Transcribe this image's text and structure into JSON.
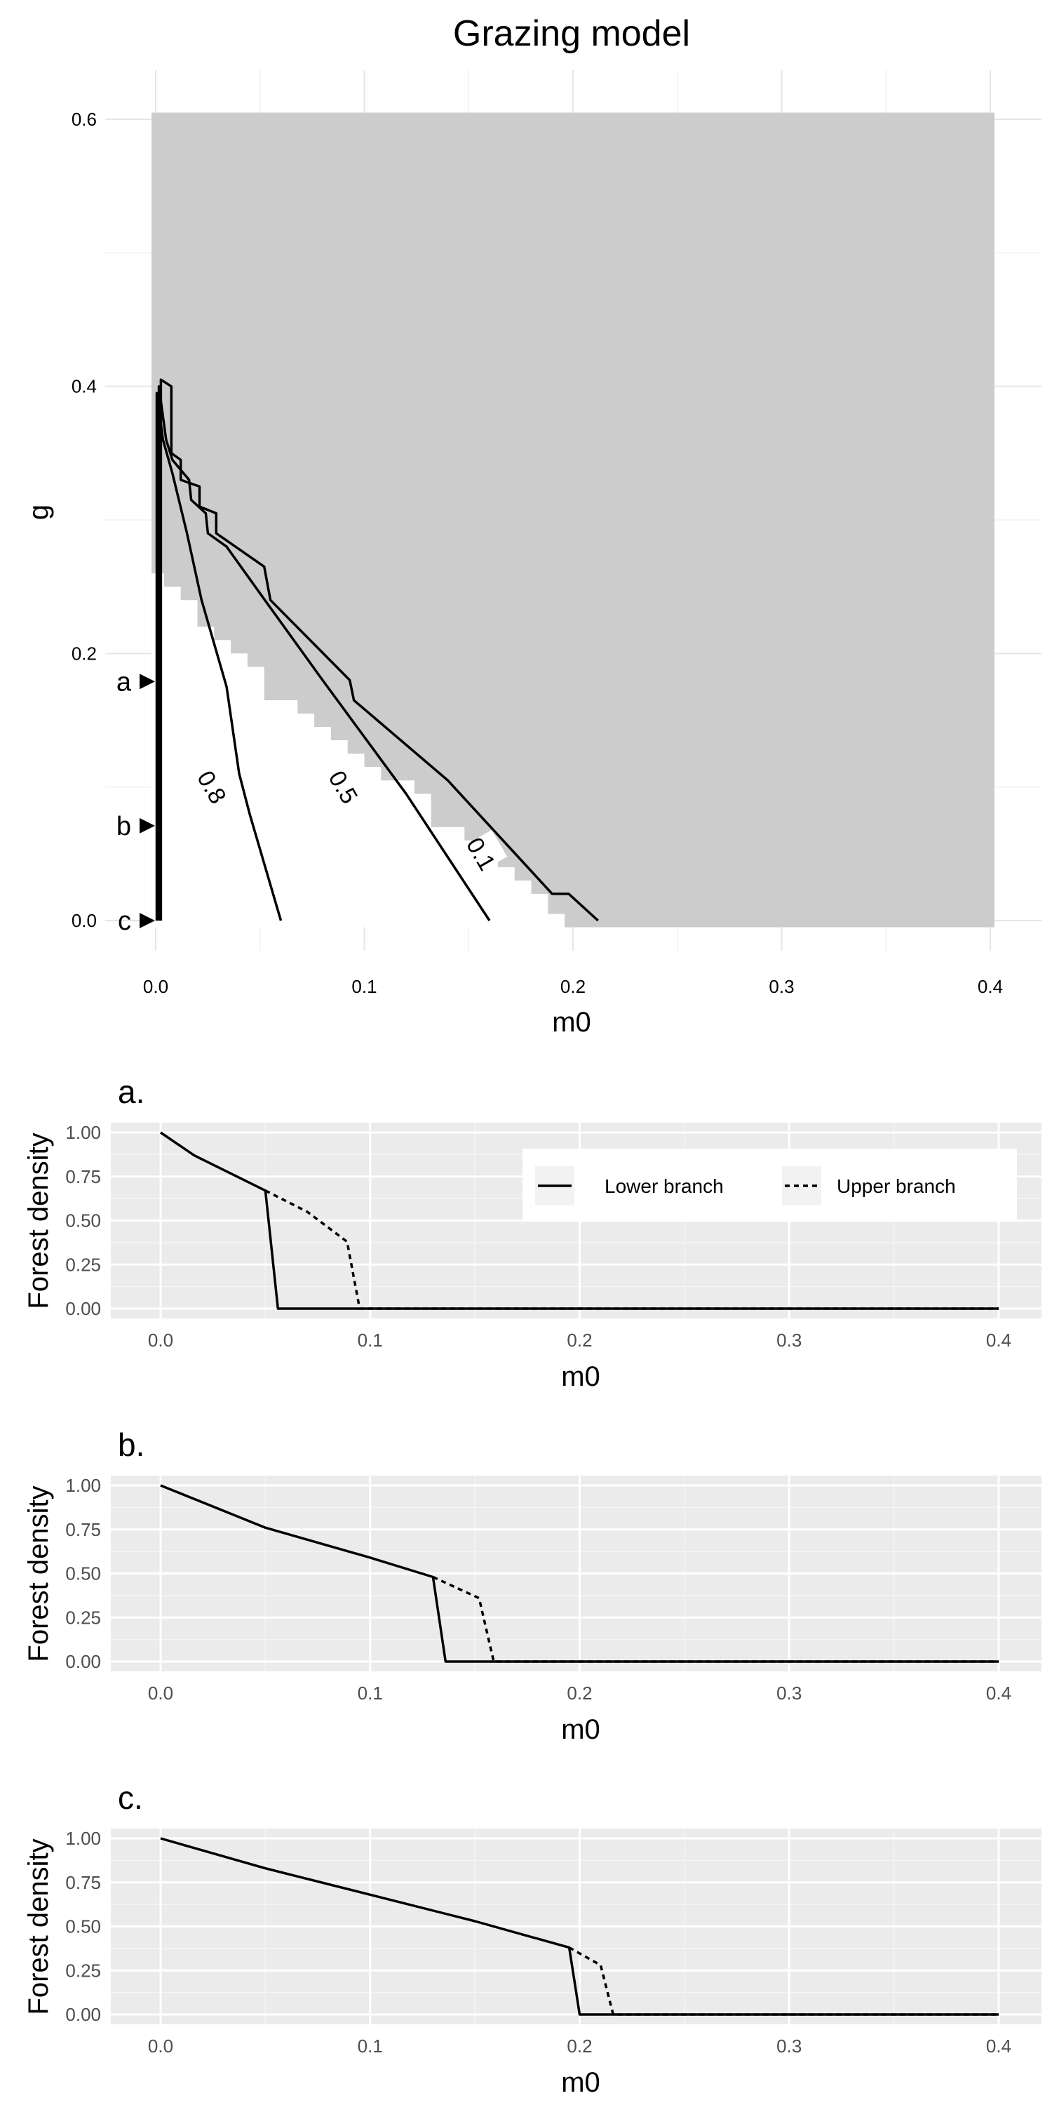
{
  "chart_data": [
    {
      "type": "heatmap",
      "title": "Grazing model",
      "xlabel": "m0",
      "ylabel": "g",
      "xlim": [
        0,
        0.4
      ],
      "ylim": [
        0,
        0.6
      ],
      "x_ticks": [
        "0.0",
        "0.1",
        "0.2",
        "0.3",
        "0.4"
      ],
      "y_ticks": [
        "0.0",
        "0.2",
        "0.4",
        "0.6"
      ],
      "grid": true,
      "region_colors": {
        "bistable": "#ffffff",
        "forest_absent": "#cccccc"
      },
      "white_region_boundary": [
        [
          0,
          0
        ],
        [
          0,
          0.26
        ],
        [
          0.004,
          0.26
        ],
        [
          0.004,
          0.25
        ],
        [
          0.012,
          0.25
        ],
        [
          0.012,
          0.24
        ],
        [
          0.02,
          0.24
        ],
        [
          0.02,
          0.22
        ],
        [
          0.028,
          0.22
        ],
        [
          0.028,
          0.21
        ],
        [
          0.036,
          0.21
        ],
        [
          0.036,
          0.2
        ],
        [
          0.044,
          0.2
        ],
        [
          0.044,
          0.19
        ],
        [
          0.052,
          0.19
        ],
        [
          0.052,
          0.165
        ],
        [
          0.068,
          0.165
        ],
        [
          0.068,
          0.155
        ],
        [
          0.076,
          0.155
        ],
        [
          0.076,
          0.145
        ],
        [
          0.084,
          0.145
        ],
        [
          0.084,
          0.135
        ],
        [
          0.092,
          0.135
        ],
        [
          0.092,
          0.125
        ],
        [
          0.1,
          0.125
        ],
        [
          0.1,
          0.115
        ],
        [
          0.108,
          0.115
        ],
        [
          0.108,
          0.105
        ],
        [
          0.124,
          0.105
        ],
        [
          0.124,
          0.095
        ],
        [
          0.132,
          0.095
        ],
        [
          0.132,
          0.07
        ],
        [
          0.148,
          0.07
        ],
        [
          0.148,
          0.06
        ],
        [
          0.164,
          0.06
        ],
        [
          0.164,
          0.04
        ],
        [
          0.172,
          0.04
        ],
        [
          0.172,
          0.03
        ],
        [
          0.18,
          0.03
        ],
        [
          0.18,
          0.02
        ],
        [
          0.188,
          0.02
        ],
        [
          0.188,
          0.005
        ],
        [
          0.196,
          0.005
        ],
        [
          0.196,
          0
        ],
        [
          0,
          0
        ]
      ],
      "contours": [
        {
          "label": "0.1",
          "label_at": [
            0.156,
            0.05
          ],
          "points": [
            [
              0.0025,
              0
            ],
            [
              0.0025,
              0.405
            ],
            [
              0.0075,
              0.4
            ],
            [
              0.0075,
              0.35
            ],
            [
              0.012,
              0.345
            ],
            [
              0.012,
              0.33
            ],
            [
              0.021,
              0.325
            ],
            [
              0.021,
              0.31
            ],
            [
              0.029,
              0.305
            ],
            [
              0.029,
              0.29
            ],
            [
              0.052,
              0.265
            ],
            [
              0.055,
              0.24
            ],
            [
              0.093,
              0.18
            ],
            [
              0.095,
              0.165
            ],
            [
              0.14,
              0.105
            ],
            [
              0.19,
              0.02
            ],
            [
              0.198,
              0.02
            ],
            [
              0.212,
              0
            ]
          ]
        },
        {
          "label": "0.5",
          "label_at": [
            0.09,
            0.1
          ],
          "points": [
            [
              0.0015,
              0
            ],
            [
              0.0015,
              0.4
            ],
            [
              0.005,
              0.36
            ],
            [
              0.008,
              0.345
            ],
            [
              0.016,
              0.33
            ],
            [
              0.017,
              0.315
            ],
            [
              0.024,
              0.305
            ],
            [
              0.025,
              0.29
            ],
            [
              0.034,
              0.28
            ],
            [
              0.05,
              0.245
            ],
            [
              0.08,
              0.18
            ],
            [
              0.12,
              0.095
            ],
            [
              0.16,
              0
            ]
          ]
        },
        {
          "label": "0.8",
          "label_at": [
            0.027,
            0.1
          ],
          "points": [
            [
              0.0005,
              0
            ],
            [
              0.0005,
              0.395
            ],
            [
              0.0035,
              0.36
            ],
            [
              0.008,
              0.335
            ],
            [
              0.015,
              0.29
            ],
            [
              0.022,
              0.24
            ],
            [
              0.034,
              0.175
            ],
            [
              0.04,
              0.11
            ],
            [
              0.045,
              0.08
            ],
            [
              0.06,
              0
            ]
          ]
        }
      ],
      "markers": [
        {
          "label": "a",
          "g": 0.179
        },
        {
          "label": "b",
          "g": 0.071
        },
        {
          "label": "c",
          "g": 0
        }
      ]
    },
    {
      "type": "line",
      "title": "a.",
      "xlabel": "m0",
      "ylabel": "Forest density",
      "xlim": [
        0,
        0.4
      ],
      "ylim": [
        0,
        1
      ],
      "x_ticks": [
        "0.0",
        "0.1",
        "0.2",
        "0.3",
        "0.4"
      ],
      "y_ticks": [
        "0.00",
        "0.25",
        "0.50",
        "0.75",
        "1.00"
      ],
      "grid": true,
      "legend_position": "top-right",
      "series": [
        {
          "name": "Lower branch",
          "line": "solid",
          "points": [
            [
              0,
              1
            ],
            [
              0.016,
              0.87
            ],
            [
              0.033,
              0.77
            ],
            [
              0.05,
              0.67
            ],
            [
              0.056,
              0
            ],
            [
              0.4,
              0
            ]
          ]
        },
        {
          "name": "Upper branch",
          "line": "dashed",
          "points": [
            [
              0.05,
              0.67
            ],
            [
              0.07,
              0.55
            ],
            [
              0.089,
              0.38
            ],
            [
              0.095,
              0
            ],
            [
              0.4,
              0
            ]
          ]
        }
      ]
    },
    {
      "type": "line",
      "title": "b.",
      "xlabel": "m0",
      "ylabel": "Forest density",
      "xlim": [
        0,
        0.4
      ],
      "ylim": [
        0,
        1
      ],
      "x_ticks": [
        "0.0",
        "0.1",
        "0.2",
        "0.3",
        "0.4"
      ],
      "y_ticks": [
        "0.00",
        "0.25",
        "0.50",
        "0.75",
        "1.00"
      ],
      "grid": true,
      "series": [
        {
          "name": "Lower branch",
          "line": "solid",
          "points": [
            [
              0,
              1
            ],
            [
              0.05,
              0.76
            ],
            [
              0.1,
              0.59
            ],
            [
              0.13,
              0.48
            ],
            [
              0.136,
              0
            ],
            [
              0.4,
              0
            ]
          ]
        },
        {
          "name": "Upper branch",
          "line": "dashed",
          "points": [
            [
              0.13,
              0.48
            ],
            [
              0.152,
              0.36
            ],
            [
              0.159,
              0
            ],
            [
              0.4,
              0
            ]
          ]
        }
      ]
    },
    {
      "type": "line",
      "title": "c.",
      "xlabel": "m0",
      "ylabel": "Forest density",
      "xlim": [
        0,
        0.4
      ],
      "ylim": [
        0,
        1
      ],
      "x_ticks": [
        "0.0",
        "0.1",
        "0.2",
        "0.3",
        "0.4"
      ],
      "y_ticks": [
        "0.00",
        "0.25",
        "0.50",
        "0.75",
        "1.00"
      ],
      "grid": true,
      "series": [
        {
          "name": "Lower branch",
          "line": "solid",
          "points": [
            [
              0,
              1
            ],
            [
              0.05,
              0.83
            ],
            [
              0.1,
              0.68
            ],
            [
              0.15,
              0.53
            ],
            [
              0.195,
              0.38
            ],
            [
              0.2,
              0
            ],
            [
              0.4,
              0
            ]
          ]
        },
        {
          "name": "Upper branch",
          "line": "dashed",
          "points": [
            [
              0.195,
              0.38
            ],
            [
              0.21,
              0.28
            ],
            [
              0.216,
              0
            ],
            [
              0.4,
              0
            ]
          ]
        }
      ]
    }
  ]
}
